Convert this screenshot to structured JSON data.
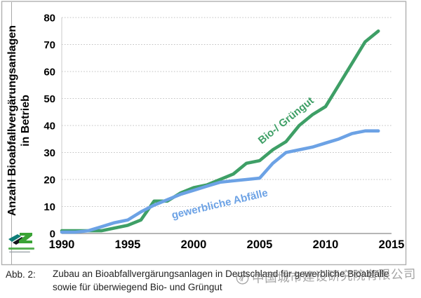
{
  "figure": {
    "y_axis_title_line1": "Anzahl Bioabfallvergärungsanlagen",
    "y_axis_title_line2": "in Betrieb",
    "series_labels": {
      "green": "Bio-/ Grüngut",
      "blue": "gewerbliche Abfälle"
    }
  },
  "caption": {
    "prefix": "Abb. 2:",
    "line1": "Zubau an Bioabfallvergärungsanlagen in Deutschland für gewerbliche Bioabfälle",
    "line2": "sowie für überwiegend Bio- und Grüngut"
  },
  "watermark": {
    "text": "中国城市建设研究院有限公司"
  },
  "colors": {
    "green_line": "#3E9F66",
    "blue_line": "#6CA2E5",
    "grid": "#c2c2c2",
    "axis": "#9e9e9e",
    "frame": "#b0b0b0",
    "watermark_gray": "#6e6e6e"
  },
  "chart_data": {
    "type": "line",
    "x": [
      1990,
      1991,
      1992,
      1993,
      1994,
      1995,
      1996,
      1997,
      1998,
      1999,
      2000,
      2001,
      2002,
      2003,
      2004,
      2005,
      2006,
      2007,
      2008,
      2009,
      2010,
      2011,
      2012,
      2013,
      2014
    ],
    "series": [
      {
        "name": "Bio-/ Grüngut",
        "color": "#3E9F66",
        "values": [
          1,
          1,
          1,
          1,
          2,
          3,
          5,
          12,
          12,
          15,
          17,
          18,
          20,
          22,
          26,
          27,
          31,
          34,
          40,
          44,
          47,
          55,
          63,
          71,
          75
        ]
      },
      {
        "name": "gewerbliche Abfälle",
        "color": "#6CA2E5",
        "values": [
          0.5,
          0.5,
          1,
          2.5,
          4,
          5,
          8,
          10.5,
          12.5,
          14.5,
          16,
          17.5,
          19,
          19.5,
          20,
          20.5,
          26,
          30,
          31,
          32,
          33.5,
          35,
          37,
          38,
          38
        ]
      }
    ],
    "title": "",
    "xlabel": "",
    "ylabel": "Anzahl Bioabfallvergärungsanlagen in Betrieb",
    "xlim": [
      1990,
      2015
    ],
    "ylim": [
      0,
      80
    ],
    "x_ticks": [
      1990,
      1995,
      2000,
      2005,
      2010,
      2015
    ],
    "y_ticks": [
      0,
      10,
      20,
      30,
      40,
      50,
      60,
      70,
      80
    ],
    "grid": true,
    "legend": "inline-rotated-labels"
  }
}
